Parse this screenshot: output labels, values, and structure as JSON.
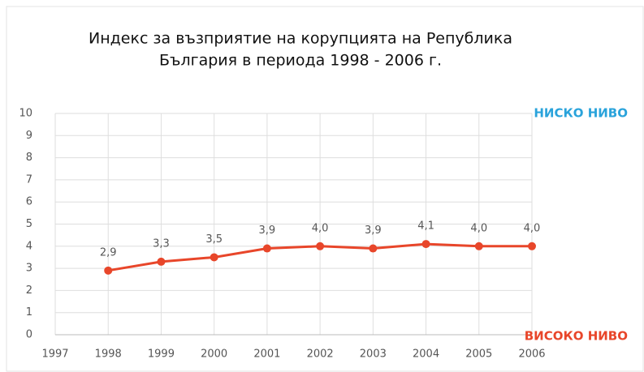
{
  "chart_data": {
    "type": "line",
    "title": [
      "Индекс за възприятие на корупцията на Република",
      "България в периода 1998 - 2006 г."
    ],
    "x": [
      1998,
      1999,
      2000,
      2001,
      2002,
      2003,
      2004,
      2005,
      2006
    ],
    "series": [
      {
        "name": null,
        "color": "#e8462a",
        "values": [
          2.9,
          3.3,
          3.5,
          3.9,
          4.0,
          3.9,
          4.1,
          4.0,
          4.0
        ],
        "value_labels": [
          "2,9",
          "3,3",
          "3,5",
          "3,9",
          "4,0",
          "3,9",
          "4,1",
          "4,0",
          "4,0"
        ]
      }
    ],
    "xlim": [
      1997,
      2006
    ],
    "xticks": [
      1997,
      1998,
      1999,
      2000,
      2001,
      2002,
      2003,
      2004,
      2005,
      2006
    ],
    "ylim": [
      0,
      10
    ],
    "yticks": [
      0,
      1,
      2,
      3,
      4,
      5,
      6,
      7,
      8,
      9,
      10
    ],
    "grid": true,
    "annotations": [
      {
        "text": "НИСКО НИВО",
        "color": "#2aa3db"
      },
      {
        "text": "ВИСОКО НИВО",
        "color": "#e8462a"
      }
    ]
  }
}
